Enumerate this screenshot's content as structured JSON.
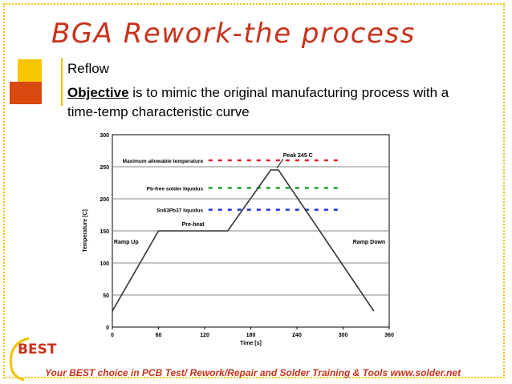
{
  "slide": {
    "title": "BGA Rework-the process",
    "bullet_1": "Reflow",
    "bullet_2_keyword": "Objective",
    "bullet_2_rest": " is to mimic the original manufacturing process with a time-temp characteristic curve",
    "logo_text": "BEST",
    "footer": "Your BEST choice in PCB Test/ Rework/Repair and Solder Training & Tools www.solder.net"
  },
  "chart_data": {
    "type": "line",
    "xlabel": "Time [s]",
    "ylabel": "Temperature [C]",
    "xlim": [
      0,
      360
    ],
    "ylim": [
      0,
      300
    ],
    "xticks": [
      0,
      60,
      120,
      180,
      240,
      300,
      360
    ],
    "yticks": [
      0,
      50,
      100,
      150,
      200,
      250,
      300
    ],
    "series": [
      {
        "x": [
          0,
          60,
          150,
          206,
          216,
          340
        ],
        "y": [
          25,
          150,
          150,
          245,
          245,
          25
        ]
      }
    ],
    "reference_lines": [
      {
        "label": "Maximum allowable temperature",
        "y": 260,
        "color": "#e8202a"
      },
      {
        "label": "Pb-free solder liquidus",
        "y": 217,
        "color": "#1aa52c"
      },
      {
        "label": "Sn63Pb37 liquidus",
        "y": 183,
        "color": "#2233dd"
      }
    ],
    "annotations": [
      {
        "text": "Peak 245 C",
        "x": 214,
        "y": 245
      },
      {
        "text": "Pre-heat",
        "x": 105,
        "y": 150
      },
      {
        "text": "Ramp Up",
        "x": 20,
        "y": 130
      },
      {
        "text": "Ramp Down",
        "x": 325,
        "y": 130
      }
    ],
    "grid": true
  }
}
